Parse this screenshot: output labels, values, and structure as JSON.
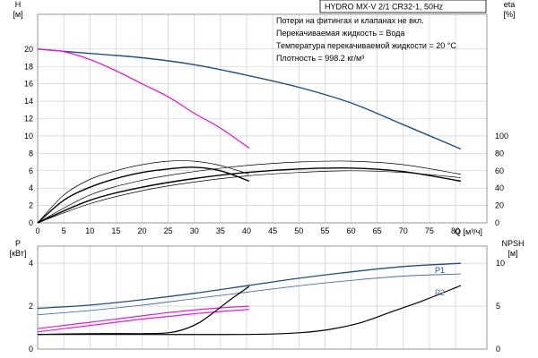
{
  "title_box": "HYDRO MX-V 2/1 CR32-1, 50Hz",
  "notes": [
    "Потери на фитингах и клапанах не вкл.",
    "Перекачиваемая жидкость = Вода",
    "Температура перекачиваемой жидкости = 20 °C",
    "Плотность = 998.2 кг/м³"
  ],
  "colors": {
    "head_1_pump": "#e020d0",
    "head_2_pumps": "#1f4f7f",
    "efficiency": "#000000",
    "power_p1": "#1f4f7f",
    "power_p2": "#4f6f9f",
    "power_single": "#e020d0",
    "npsh": "#000000",
    "grid": "#c8c8c8"
  },
  "chart_data": [
    {
      "type": "line",
      "name": "head-efficiency",
      "y_title": "H",
      "y_unit": "[м]",
      "y2_title": "eta",
      "y2_unit": "[%]",
      "x_label": "Q [м³/ч]",
      "x_ticks": [
        0,
        5,
        10,
        15,
        20,
        25,
        30,
        35,
        40,
        45,
        50,
        55,
        60,
        65,
        70,
        75,
        80
      ],
      "xlim": [
        0,
        86
      ],
      "ylim": [
        0,
        24
      ],
      "y_ticks": [
        0,
        2,
        4,
        6,
        8,
        10,
        12,
        14,
        16,
        18,
        20
      ],
      "y2lim": [
        0,
        240
      ],
      "y2_ticks": [
        0,
        20,
        40,
        60,
        80,
        100
      ],
      "grid": true,
      "series": [
        {
          "role": "head_2_pumps",
          "axis": "y",
          "x": [
            0,
            10,
            20,
            30,
            40,
            50,
            60,
            70,
            81
          ],
          "y": [
            20.0,
            19.5,
            19.0,
            18.2,
            17.0,
            15.6,
            13.8,
            11.3,
            8.5
          ]
        },
        {
          "role": "head_1_pump",
          "axis": "y",
          "x": [
            0,
            5,
            10,
            15,
            20,
            25,
            30,
            35,
            40.5
          ],
          "y": [
            20.0,
            19.7,
            18.8,
            17.5,
            16.0,
            14.5,
            12.6,
            10.9,
            8.6
          ]
        },
        {
          "role": "eff_1_pump_a",
          "axis": "y2",
          "x": [
            0,
            5,
            10,
            15,
            20,
            25,
            30,
            35,
            40.5
          ],
          "y": [
            0,
            32,
            50,
            60,
            67,
            71,
            71,
            66,
            56
          ]
        },
        {
          "role": "eff_1_pump_b",
          "axis": "y2",
          "x": [
            0,
            5,
            10,
            15,
            20,
            25,
            30,
            35,
            40.5
          ],
          "y": [
            0,
            26,
            41,
            51,
            58,
            62,
            64,
            60,
            48
          ]
        },
        {
          "role": "eff_2_pumps_a",
          "axis": "y2",
          "x": [
            0,
            10,
            20,
            30,
            40,
            50,
            60,
            70,
            81
          ],
          "y": [
            0,
            32,
            49,
            59,
            66,
            70,
            71,
            67,
            56
          ]
        },
        {
          "role": "eff_2_pumps_b",
          "axis": "y2",
          "x": [
            0,
            10,
            20,
            30,
            40,
            50,
            60,
            70,
            81
          ],
          "y": [
            0,
            26,
            41,
            51,
            58,
            62,
            63,
            59,
            48
          ]
        },
        {
          "role": "eff_2_pumps_c",
          "axis": "y2",
          "x": [
            0,
            10,
            20,
            30,
            40,
            50,
            60,
            70,
            81
          ],
          "y": [
            0,
            22,
            37,
            47,
            54,
            58,
            60,
            58,
            52
          ]
        }
      ]
    },
    {
      "type": "line",
      "name": "power-npsh",
      "y_title": "P",
      "y_unit": "[кВт]",
      "y2_title": "NPSH",
      "y2_unit": "[м]",
      "xlim": [
        0,
        86
      ],
      "ylim": [
        0,
        4.8
      ],
      "y_ticks": [
        0,
        2,
        4
      ],
      "y2lim": [
        0,
        12
      ],
      "y2_ticks": [
        0,
        5,
        10
      ],
      "grid": true,
      "series": [
        {
          "name": "P1",
          "role": "power_p1",
          "axis": "y",
          "x": [
            0,
            10,
            20,
            30,
            40,
            50,
            60,
            70,
            81
          ],
          "y": [
            1.9,
            2.05,
            2.3,
            2.6,
            2.95,
            3.3,
            3.6,
            3.85,
            4.0
          ]
        },
        {
          "name": "P2",
          "role": "power_p2",
          "axis": "y",
          "x": [
            0,
            10,
            20,
            30,
            40,
            50,
            60,
            70,
            81
          ],
          "y": [
            1.6,
            1.8,
            2.05,
            2.35,
            2.65,
            2.95,
            3.2,
            3.4,
            3.5
          ]
        },
        {
          "role": "power_single_a",
          "axis": "y",
          "x": [
            0,
            5,
            10,
            15,
            20,
            25,
            30,
            35,
            40.5
          ],
          "y": [
            0.95,
            1.1,
            1.25,
            1.4,
            1.55,
            1.7,
            1.82,
            1.92,
            2.0
          ]
        },
        {
          "role": "power_single_b",
          "axis": "y",
          "x": [
            0,
            5,
            10,
            15,
            20,
            25,
            30,
            35,
            40.5
          ],
          "y": [
            0.8,
            0.95,
            1.1,
            1.25,
            1.4,
            1.52,
            1.65,
            1.75,
            1.85
          ]
        },
        {
          "role": "npsh_1_pump",
          "axis": "y2",
          "x": [
            0,
            10,
            20,
            25,
            28,
            31,
            34,
            37,
            40.5
          ],
          "y": [
            1.7,
            1.8,
            1.8,
            1.9,
            2.3,
            3.1,
            4.4,
            5.8,
            7.3
          ]
        },
        {
          "role": "npsh_2_pumps",
          "axis": "y2",
          "x": [
            0,
            20,
            40,
            50,
            56,
            62,
            68,
            74,
            81
          ],
          "y": [
            1.7,
            1.7,
            1.7,
            1.9,
            2.3,
            3.1,
            4.4,
            5.7,
            7.4
          ]
        }
      ]
    }
  ]
}
